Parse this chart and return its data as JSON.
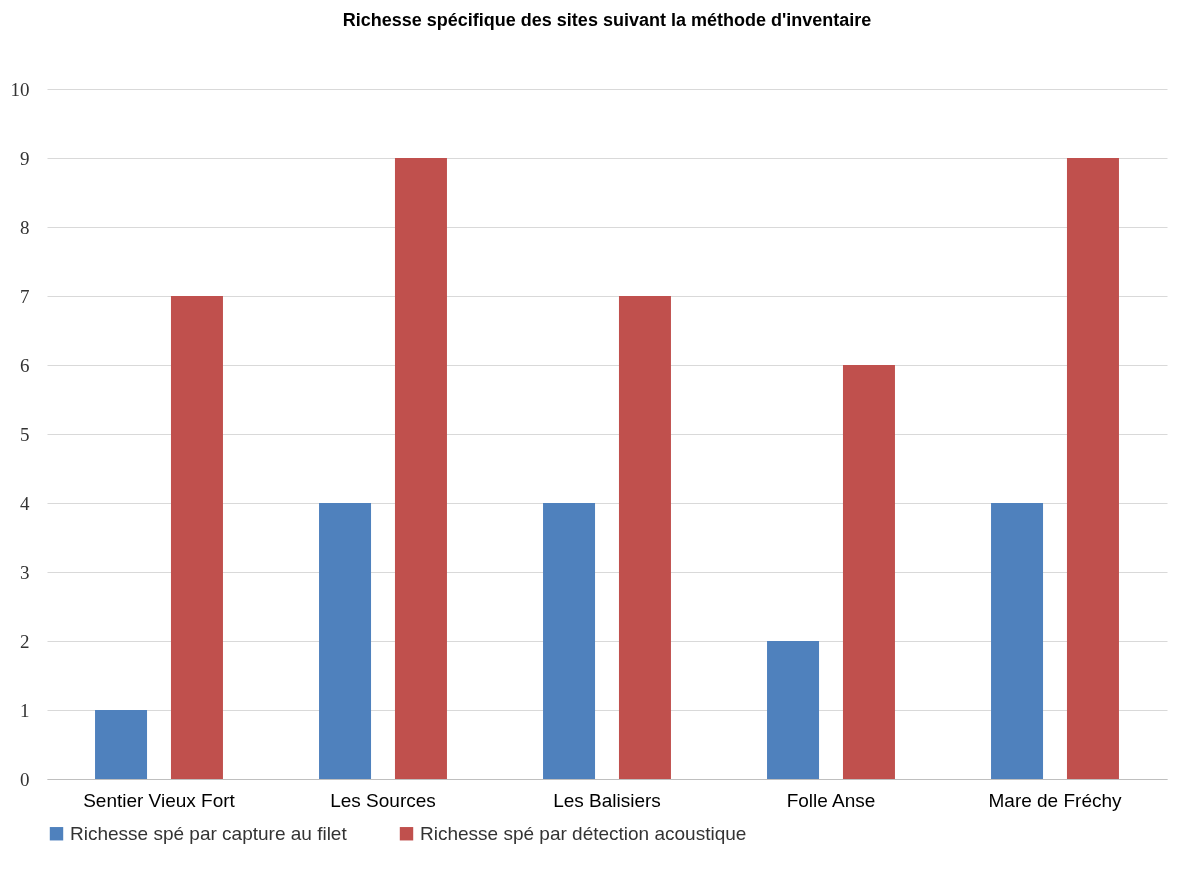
{
  "chart_data": {
    "type": "bar",
    "title": "Richesse spécifique des sites suivant la méthode d'inventaire",
    "categories": [
      "Sentier Vieux Fort",
      "Les Sources",
      "Les Balisiers",
      "Folle Anse",
      "Mare de Fréchy"
    ],
    "series": [
      {
        "name": "Richesse spé par capture au filet",
        "color": "#4f81bd",
        "values": [
          1,
          4,
          4,
          2,
          4
        ]
      },
      {
        "name": "Richesse spé par détection acoustique",
        "color": "#c0504d",
        "values": [
          7,
          9,
          7,
          6,
          9
        ]
      }
    ],
    "ylim": [
      0,
      10
    ],
    "yticks": [
      0,
      1,
      2,
      3,
      4,
      5,
      6,
      7,
      8,
      9,
      10
    ],
    "grid": "y",
    "legend": "bottom"
  }
}
